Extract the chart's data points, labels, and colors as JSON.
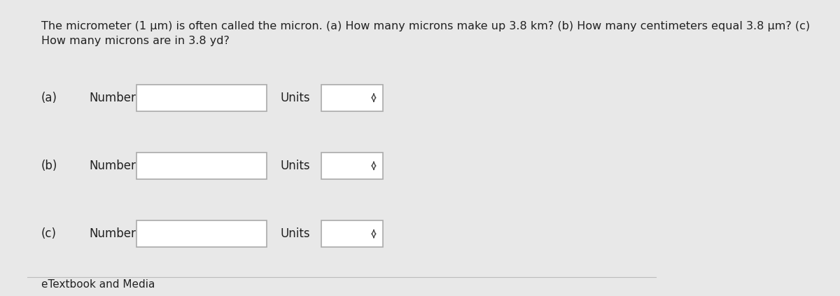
{
  "title_text": "The micrometer (1 μm) is often called the micron. (a) How many microns make up 3.8 km? (b) How many centimeters equal 3.8 μm? (c)\nHow many microns are in 3.8 yd?",
  "rows": [
    {
      "label": "(a)",
      "field_label": "Number",
      "units_label": "Units"
    },
    {
      "label": "(b)",
      "field_label": "Number",
      "units_label": "Units"
    },
    {
      "label": "(c)",
      "field_label": "Number",
      "units_label": "Units"
    }
  ],
  "footer_text": "eTextbook and Media",
  "bg_color": "#e8e8e8",
  "box_color": "#ffffff",
  "text_color": "#222222",
  "title_fontsize": 11.5,
  "label_fontsize": 12,
  "footer_fontsize": 11
}
